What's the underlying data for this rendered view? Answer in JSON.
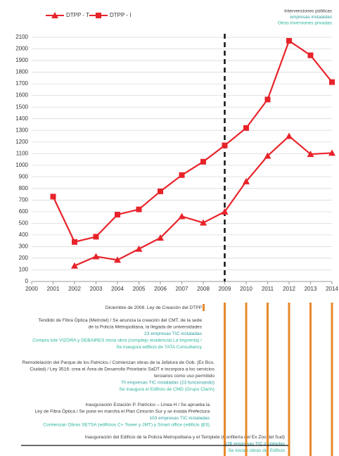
{
  "chart_data": {
    "type": "line",
    "legend_notes": [
      {
        "text": "Intervenciones públicas",
        "color": "#3a3a3a"
      },
      {
        "text": "empresas instaladas",
        "color": "#2a9d9d"
      },
      {
        "text": "Otras inversiones privadas",
        "color": "#2ab39c"
      }
    ],
    "x": [
      2000,
      2001,
      2002,
      2003,
      2004,
      2005,
      2006,
      2007,
      2008,
      2009,
      2010,
      2011,
      2012,
      2013,
      2014
    ],
    "series": [
      {
        "name": "DTPP - T",
        "color": "#e8232a",
        "marker": "triangle",
        "values": [
          null,
          null,
          135,
          215,
          185,
          280,
          375,
          560,
          505,
          600,
          860,
          1080,
          1250,
          1095,
          1105
        ]
      },
      {
        "name": "DTPP - I",
        "color": "#e8232a",
        "marker": "square",
        "values": [
          null,
          730,
          340,
          385,
          575,
          620,
          775,
          915,
          1030,
          1170,
          1320,
          1565,
          2070,
          1945,
          1715
        ]
      }
    ],
    "xlim": [
      2000,
      2014
    ],
    "xticks": [
      2000,
      2001,
      2002,
      2003,
      2004,
      2005,
      2006,
      2007,
      2008,
      2009,
      2010,
      2011,
      2012,
      2013,
      2014
    ],
    "ylim": [
      0,
      2100
    ],
    "yticks": [
      0,
      100,
      200,
      300,
      400,
      500,
      600,
      700,
      800,
      900,
      1000,
      1100,
      1200,
      1300,
      1400,
      1500,
      1600,
      1700,
      1800,
      1900,
      2000,
      2100
    ],
    "grid": true,
    "vline": 2009,
    "annotations": [
      {
        "lines": [
          {
            "text": "Diciembre de 2008. Ley de Creación del DTPP",
            "color": "#3a3a3a"
          }
        ]
      },
      {
        "lines": [
          {
            "text": "Tendido de Fibra Óptica (Metrotel) / Se anuncia la creación del CMT, de la sede",
            "color": "#3a3a3a"
          },
          {
            "text": "de la Policía Metropolitana, la llegada de universidades",
            "color": "#3a3a3a"
          },
          {
            "text": "23 empresas TIC instaladas",
            "color": "#2a9d9d"
          },
          {
            "text": "Compra lote VIZORA y DEBAIRES inicia obra (complejo residencial La Imprenta) /",
            "color": "#2ab39c"
          },
          {
            "text": "Se inaugura edificio de TATA Consultancy",
            "color": "#2ab39c"
          }
        ]
      },
      {
        "lines": [
          {
            "text": "Remodelación del Parque de los Patricios / Comienzan obras de la Jefatura de Gob. (Ex Bco.",
            "color": "#3a3a3a"
          },
          {
            "text": "Ciudad) / Ley 3516: crea el Área de Desarrollo Prioritario SaDT e incorpora a los servicios",
            "color": "#3a3a3a"
          },
          {
            "text": "terciarios como uso permitido",
            "color": "#3a3a3a"
          },
          {
            "text": "70 empresas TIC instaladas (23 funcionando)",
            "color": "#2a9d9d"
          },
          {
            "text": "Se inaugura el Edificio de CMD (Grupo Clarín)",
            "color": "#2ab39c"
          }
        ]
      },
      {
        "lines": [
          {
            "text": "Inauguración Estación P. Patricios – Línea H / Se aprueba la",
            "color": "#3a3a3a"
          },
          {
            "text": "Ley de Fibra Óptica / Se pone en marcha el Plan Cinturón Sur y se instala Prefectura",
            "color": "#3a3a3a"
          },
          {
            "text": "103 empresas TIC instaladas",
            "color": "#2a9d9d"
          },
          {
            "text": "Comienzan Obras SETSA (edificios C+ Tower y JMT) y Smart office (edificio @3)",
            "color": "#2ab39c"
          }
        ]
      },
      {
        "lines": [
          {
            "text": "Inauguración del Edificio de la Policía Metropolitana y el Templete (Confitería del Ex Zoo del Sud)",
            "color": "#3a3a3a"
          },
          {
            "text": "136 empresas TIC instaladas",
            "color": "#2a9d9d"
          },
          {
            "text": "Se inician obras del Edificio",
            "color": "#2ab39c"
          }
        ]
      }
    ]
  }
}
